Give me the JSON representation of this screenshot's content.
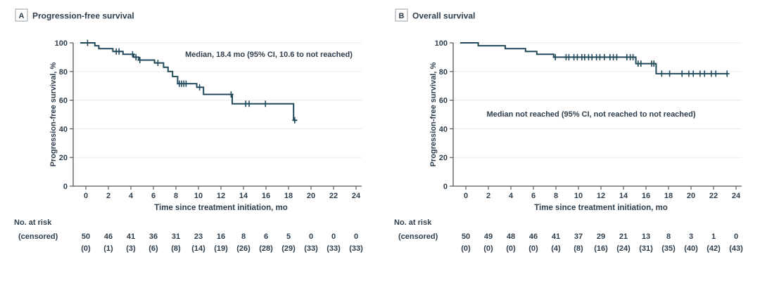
{
  "figure": {
    "risk_label_line1": "No. at risk",
    "risk_label_line2": "(censored)"
  },
  "colors": {
    "curve": "#234a5b",
    "text": "#2e3e4c",
    "axis": "#55595e",
    "grid": "#e8eaec",
    "panel_box_border": "#9ba1a7",
    "background": "#ffffff"
  },
  "chart_data": [
    {
      "type": "line",
      "subtype": "kaplan-meier-step",
      "panel_letter": "A",
      "title": "Progression-free survival",
      "annotation": "Median, 18.4 mo (95% CI, 10.6 to not reached)",
      "xlabel": "Time since treatment initiation, mo",
      "ylabel": "Progression-free survival, %",
      "xlim": [
        0,
        24
      ],
      "ylim": [
        0,
        100
      ],
      "xticks": [
        0,
        2,
        4,
        6,
        8,
        10,
        12,
        14,
        16,
        18,
        20,
        22,
        24
      ],
      "yticks": [
        0,
        20,
        40,
        60,
        80,
        100
      ],
      "grid": true,
      "legend_position": "none",
      "km_steps": [
        [
          0,
          100
        ],
        [
          0.8,
          98
        ],
        [
          1.15,
          96
        ],
        [
          2.4,
          94
        ],
        [
          3.3,
          92
        ],
        [
          4.25,
          90
        ],
        [
          4.7,
          88
        ],
        [
          6.1,
          86
        ],
        [
          6.9,
          83
        ],
        [
          7.3,
          80
        ],
        [
          7.7,
          76.5
        ],
        [
          8.15,
          71.5
        ],
        [
          9.85,
          69
        ],
        [
          10.45,
          64
        ],
        [
          13.0,
          57.5
        ],
        [
          18.45,
          46
        ]
      ],
      "curve_end": 18.75,
      "censor_times": [
        0.15,
        2.7,
        2.95,
        4.15,
        4.45,
        4.8,
        6.4,
        8.3,
        8.5,
        8.7,
        8.9,
        10.1,
        12.9,
        14.2,
        14.5,
        15.95,
        18.55
      ],
      "risk_table": {
        "at_risk": [
          "50",
          "46",
          "41",
          "36",
          "31",
          "23",
          "16",
          "8",
          "6",
          "5",
          "0",
          "0",
          "0"
        ],
        "censored": [
          "(0)",
          "(1)",
          "(3)",
          "(6)",
          "(8)",
          "(14)",
          "(19)",
          "(26)",
          "(28)",
          "(29)",
          "(33)",
          "(33)",
          "(33)"
        ]
      }
    },
    {
      "type": "line",
      "subtype": "kaplan-meier-step",
      "panel_letter": "B",
      "title": "Overall survival",
      "annotation": "Median not reached (95% CI, not reached to not reached)",
      "xlabel": "Time since treatment initiation, mo",
      "ylabel": "Progression-free survival, %",
      "xlim": [
        0,
        24
      ],
      "ylim": [
        0,
        100
      ],
      "xticks": [
        0,
        2,
        4,
        6,
        8,
        10,
        12,
        14,
        16,
        18,
        20,
        22,
        24
      ],
      "yticks": [
        0,
        20,
        40,
        60,
        80,
        100
      ],
      "grid": true,
      "legend_position": "none",
      "km_steps": [
        [
          0,
          100
        ],
        [
          1.1,
          98
        ],
        [
          3.5,
          96
        ],
        [
          5.3,
          94
        ],
        [
          6.3,
          92
        ],
        [
          7.8,
          90
        ],
        [
          15.1,
          85.5
        ],
        [
          16.9,
          78.5
        ]
      ],
      "curve_end": 23.3,
      "censor_times": [
        7.95,
        8.9,
        9.15,
        9.6,
        9.9,
        10.3,
        10.55,
        10.9,
        11.2,
        11.6,
        11.9,
        12.3,
        12.8,
        13.1,
        13.4,
        14.3,
        14.6,
        14.85,
        15.3,
        15.55,
        16.5,
        16.7,
        17.4,
        18.1,
        19.2,
        19.8,
        20.2,
        20.8,
        21.2,
        21.8,
        22.2,
        23.2
      ],
      "risk_table": {
        "at_risk": [
          "50",
          "49",
          "48",
          "46",
          "41",
          "37",
          "29",
          "21",
          "13",
          "8",
          "3",
          "1",
          "0"
        ],
        "censored": [
          "(0)",
          "(0)",
          "(0)",
          "(0)",
          "(4)",
          "(8)",
          "(16)",
          "(24)",
          "(31)",
          "(35)",
          "(40)",
          "(42)",
          "(43)"
        ]
      }
    }
  ]
}
